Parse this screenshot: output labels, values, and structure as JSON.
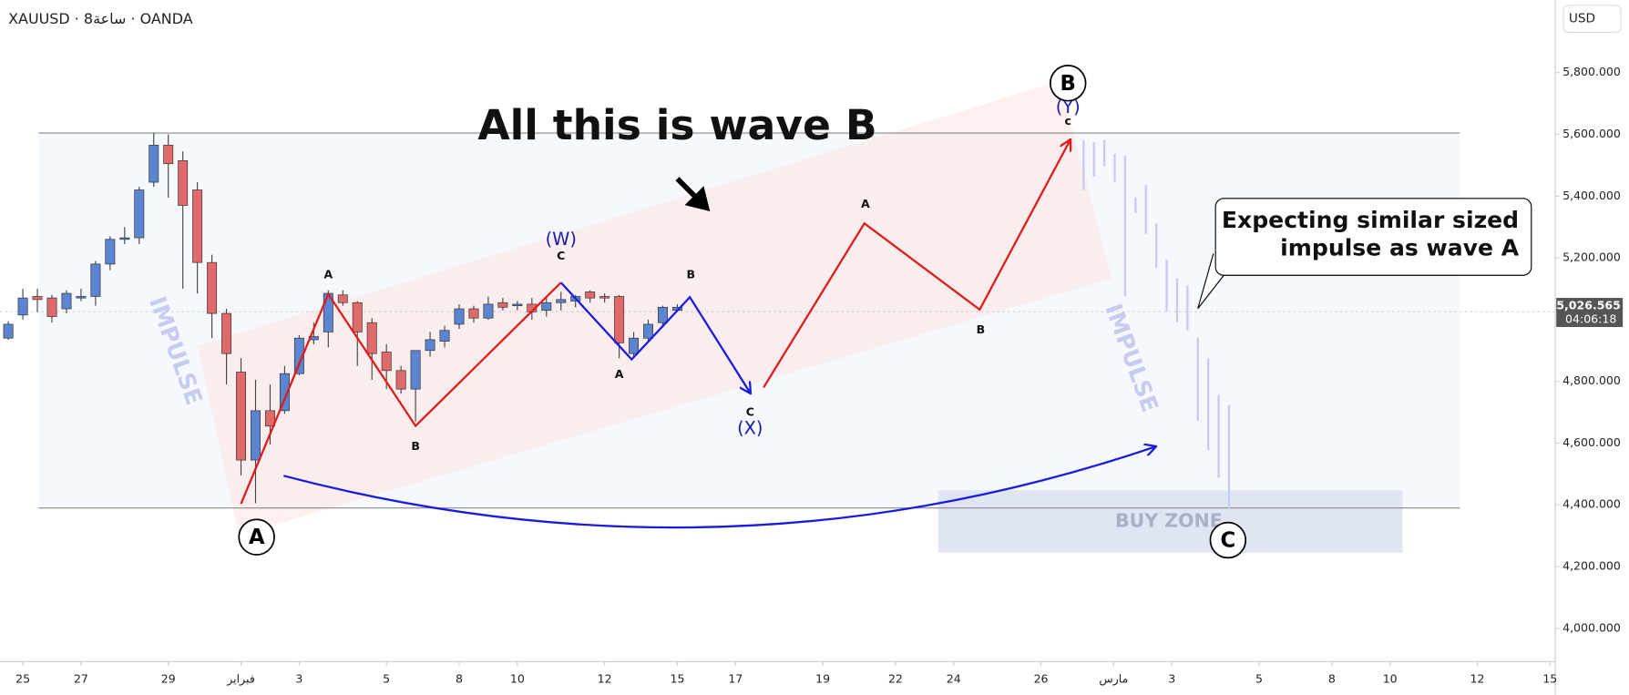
{
  "chart_data": {
    "type": "candlestick",
    "symbol": "XAUUSD · 8ساعة · OANDA",
    "currency": "USD",
    "last_price": {
      "value": 5026.565,
      "label": "5,026.565"
    },
    "countdown": "04:06:18",
    "x": [
      0,
      1,
      2,
      3,
      4,
      5,
      6,
      7,
      8,
      9,
      10,
      11,
      12,
      13,
      14,
      15,
      16,
      17,
      18,
      19,
      20,
      21,
      22,
      23,
      24,
      25,
      26,
      27,
      28,
      29,
      30,
      31,
      32,
      33,
      34,
      35,
      36,
      37,
      38,
      39,
      40,
      41,
      42,
      43,
      44,
      45,
      46
    ],
    "open": [
      4940,
      5015,
      5075,
      5070,
      5035,
      5070,
      5075,
      5180,
      5260,
      5265,
      5445,
      5565,
      5515,
      5420,
      5185,
      5020,
      4830,
      4545,
      4705,
      4705,
      4825,
      4935,
      4960,
      5080,
      5055,
      4990,
      4895,
      4835,
      4775,
      4900,
      4930,
      4985,
      5035,
      5005,
      5055,
      5045,
      5050,
      5030,
      5055,
      5060,
      5090,
      5075,
      5075,
      4890,
      4940,
      4990,
      5030
    ],
    "high": [
      4995,
      5100,
      5100,
      5080,
      5095,
      5100,
      5190,
      5270,
      5300,
      5430,
      5605,
      5600,
      5545,
      5445,
      5210,
      5035,
      4875,
      4805,
      4790,
      4850,
      4950,
      4990,
      5095,
      5095,
      5060,
      5005,
      4920,
      4850,
      4900,
      4960,
      4980,
      5050,
      5045,
      5075,
      5070,
      5060,
      5070,
      5075,
      5090,
      5080,
      5095,
      5085,
      5080,
      4960,
      5000,
      5045,
      5050
    ],
    "low": [
      4935,
      5000,
      5025,
      4990,
      5020,
      5060,
      5045,
      5160,
      5245,
      5245,
      5430,
      5395,
      5100,
      5085,
      4940,
      4790,
      4495,
      4405,
      4595,
      4695,
      4820,
      4920,
      4910,
      5045,
      4850,
      4805,
      4775,
      4760,
      4670,
      4880,
      4910,
      4970,
      4990,
      5000,
      5030,
      5030,
      5000,
      5010,
      5030,
      5040,
      5055,
      5055,
      4875,
      4880,
      4930,
      4975,
      5025
    ],
    "close": [
      4985,
      5070,
      5065,
      5010,
      5085,
      5075,
      5180,
      5260,
      5265,
      5420,
      5565,
      5505,
      5370,
      5185,
      5020,
      4890,
      4545,
      4705,
      4655,
      4825,
      4940,
      4945,
      5085,
      5055,
      4960,
      4890,
      4835,
      4775,
      4900,
      4935,
      4965,
      5035,
      5005,
      5050,
      5040,
      5050,
      5025,
      5055,
      5065,
      5075,
      5070,
      5070,
      4925,
      4940,
      4985,
      5040,
      5040
    ],
    "up_color": "#5b84d1",
    "down_color": "#e06a6a",
    "xlim": [
      -0.571,
      106.36
    ],
    "xticks": [
      {
        "value": 1,
        "label": "25"
      },
      {
        "value": 5,
        "label": "27"
      },
      {
        "value": 11,
        "label": "29"
      },
      {
        "value": 16,
        "label": "فبراير"
      },
      {
        "value": 20,
        "label": "3"
      },
      {
        "value": 26,
        "label": "5"
      },
      {
        "value": 31,
        "label": "8"
      },
      {
        "value": 35,
        "label": "10"
      },
      {
        "value": 41,
        "label": "12"
      },
      {
        "value": 46,
        "label": "15"
      },
      {
        "value": 50,
        "label": "17"
      },
      {
        "value": 56,
        "label": "19"
      },
      {
        "value": 61,
        "label": "22"
      },
      {
        "value": 65,
        "label": "24"
      },
      {
        "value": 71,
        "label": "26"
      },
      {
        "value": 76,
        "label": "مارس"
      },
      {
        "value": 80,
        "label": "3"
      },
      {
        "value": 86,
        "label": "5"
      },
      {
        "value": 91,
        "label": "8"
      },
      {
        "value": 95,
        "label": "10"
      },
      {
        "value": 101,
        "label": "12"
      },
      {
        "value": 106,
        "label": "15"
      }
    ],
    "ylim": [
      3892,
      6035
    ],
    "yticks": [
      {
        "value": 4000,
        "label": "4,000.000"
      },
      {
        "value": 4200,
        "label": "4,200.000"
      },
      {
        "value": 4400,
        "label": "4,400.000"
      },
      {
        "value": 4600,
        "label": "4,600.000"
      },
      {
        "value": 4800,
        "label": "4,800.000"
      },
      {
        "value": 5000,
        "label": "5,000.000"
      },
      {
        "value": 5200,
        "label": "5,200.000"
      },
      {
        "value": 5400,
        "label": "5,400.000"
      },
      {
        "value": 5600,
        "label": "5,600.000"
      },
      {
        "value": 5800,
        "label": "5,800.000"
      }
    ],
    "annotations": {
      "headline": "All this is wave B",
      "callout": [
        "Expecting similar sized",
        "impulse as wave A"
      ],
      "impulse_left": "IMPULSE",
      "impulse_right": "IMPULSE",
      "buy_zone": "BUY ZONE",
      "waves": [
        "A",
        "B",
        "C",
        "(W)",
        "A",
        "B",
        "C",
        "(X)",
        "A",
        "B",
        "(Y)",
        "c",
        "A",
        "B",
        "C"
      ]
    }
  }
}
